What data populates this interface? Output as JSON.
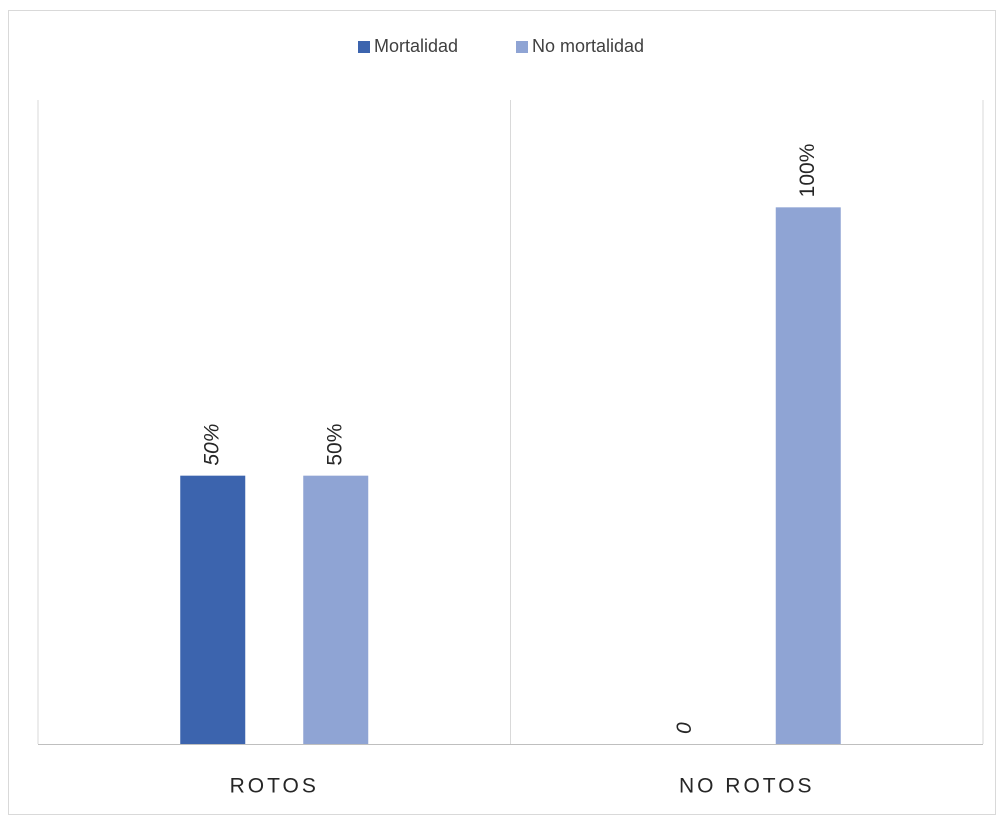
{
  "chart_data": {
    "type": "bar",
    "categories": [
      "ROTOS",
      "NO ROTOS"
    ],
    "series": [
      {
        "name": "Mortalidad",
        "color": "#3c64ae",
        "values": [
          50,
          0
        ],
        "value_labels": [
          "50%",
          "0"
        ]
      },
      {
        "name": "No mortalidad",
        "color": "#8fa4d4",
        "values": [
          50,
          100
        ],
        "value_labels": [
          "50%",
          "100%"
        ]
      }
    ],
    "ylim": [
      0,
      120
    ],
    "legend": "top"
  }
}
